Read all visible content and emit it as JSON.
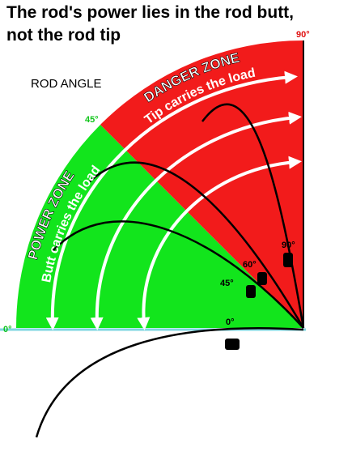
{
  "title": [
    "The rod's power lies in the rod butt,",
    "not the rod tip"
  ],
  "rod_angle_label": "ROD ANGLE",
  "zones": [
    {
      "name": "DANGER ZONE",
      "note": "Tip carries the load"
    },
    {
      "name": "POWER ZONE",
      "note": "Butt carries the load"
    }
  ],
  "axis_angles": [
    "90°",
    "45°",
    "0°"
  ],
  "rod_angles": [
    "90°",
    "60°",
    "45°",
    "0°"
  ]
}
